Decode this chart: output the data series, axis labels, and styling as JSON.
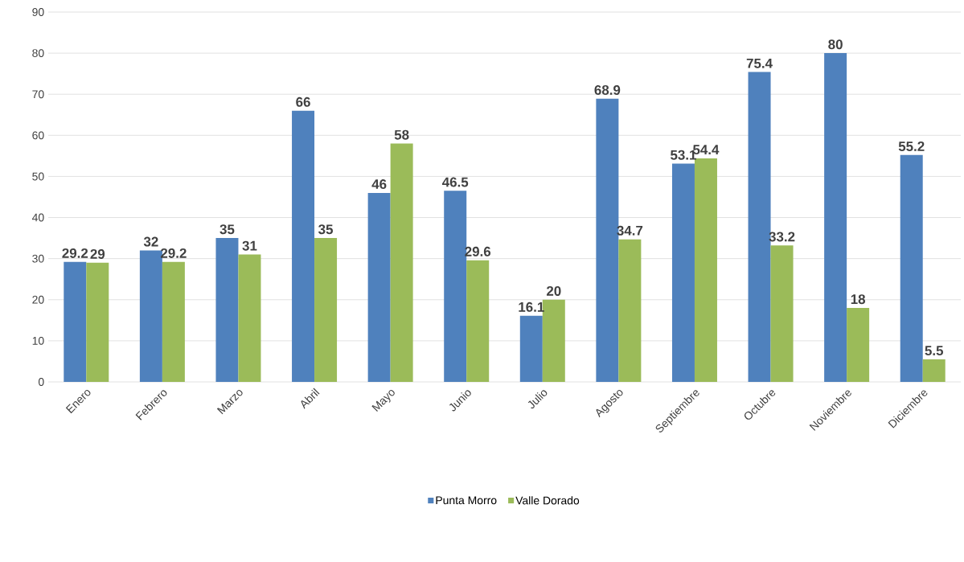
{
  "chart_data": {
    "type": "bar",
    "categories": [
      "Enero",
      "Febrero",
      "Marzo",
      "Abril",
      "Mayo",
      "Junio",
      "Julio",
      "Agosto",
      "Septiembre",
      "Octubre",
      "Noviembre",
      "Diciembre"
    ],
    "series": [
      {
        "name": "Punta Morro",
        "color": "#4f81bd",
        "values": [
          29.2,
          32,
          35,
          66,
          46,
          46.5,
          16.1,
          68.9,
          53.1,
          75.4,
          80,
          55.2
        ]
      },
      {
        "name": "Valle Dorado",
        "color": "#9bbb59",
        "values": [
          29,
          29.2,
          31,
          35,
          58,
          29.6,
          20,
          34.7,
          54.4,
          33.2,
          18,
          5.5
        ]
      }
    ],
    "ylim": [
      0,
      90
    ],
    "yticks": [
      0,
      10,
      20,
      30,
      40,
      50,
      60,
      70,
      80,
      90
    ],
    "grid": "y",
    "legend": "bottom",
    "data_labels": true
  }
}
